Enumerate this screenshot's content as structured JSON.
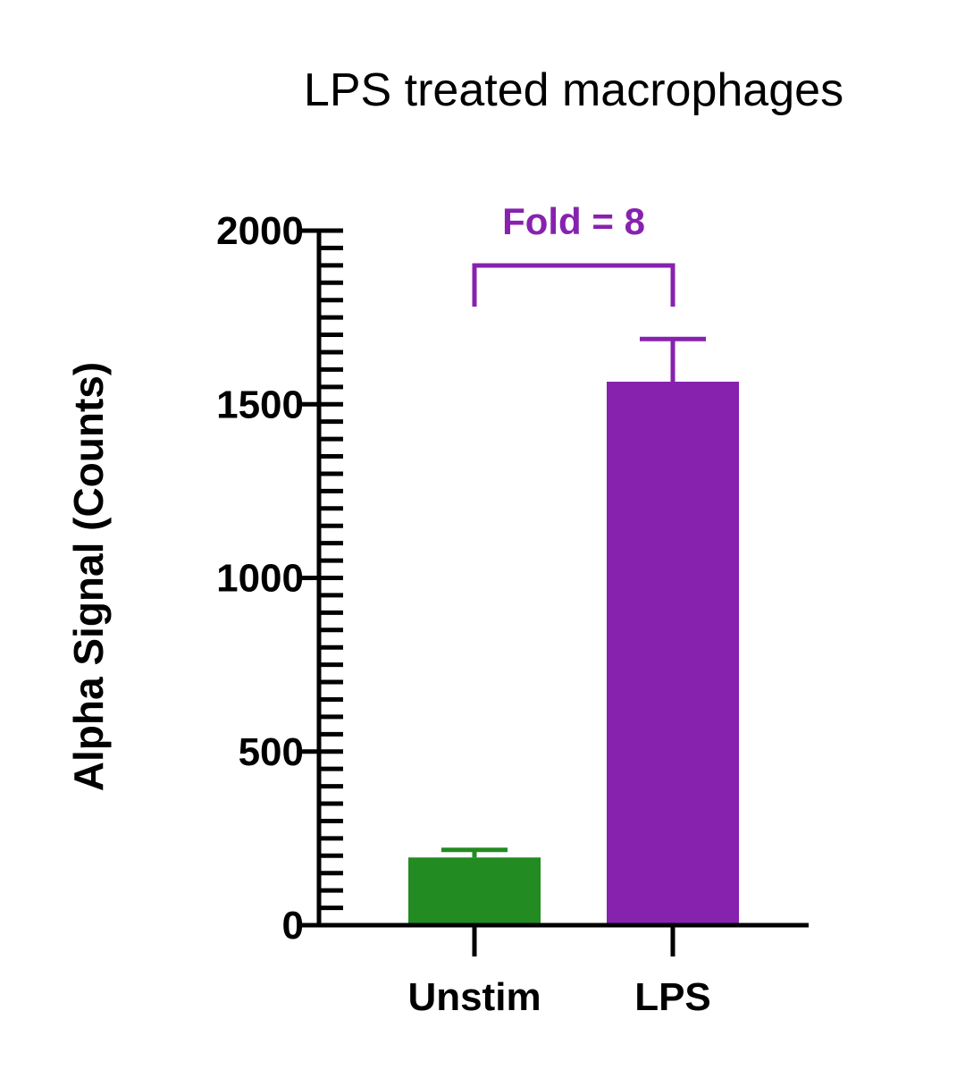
{
  "chart_data": {
    "type": "bar",
    "title": "LPS treated macrophages",
    "xlabel": "",
    "ylabel": "Alpha Signal (Counts)",
    "categories": [
      "Unstim",
      "LPS"
    ],
    "values": [
      195,
      1565
    ],
    "errors": [
      22,
      123
    ],
    "colors": [
      "#228B22",
      "#8722AF"
    ],
    "ylim": [
      0,
      2000
    ],
    "yticks": [
      0,
      500,
      1000,
      1500,
      2000
    ],
    "ytick_labels": [
      "0",
      "500",
      "1000",
      "1500",
      "2000"
    ],
    "minor_tick_step": 50,
    "grid": false,
    "annotation": {
      "text": "Fold = 8",
      "color": "#8722AF",
      "between": [
        "Unstim",
        "LPS"
      ]
    }
  }
}
